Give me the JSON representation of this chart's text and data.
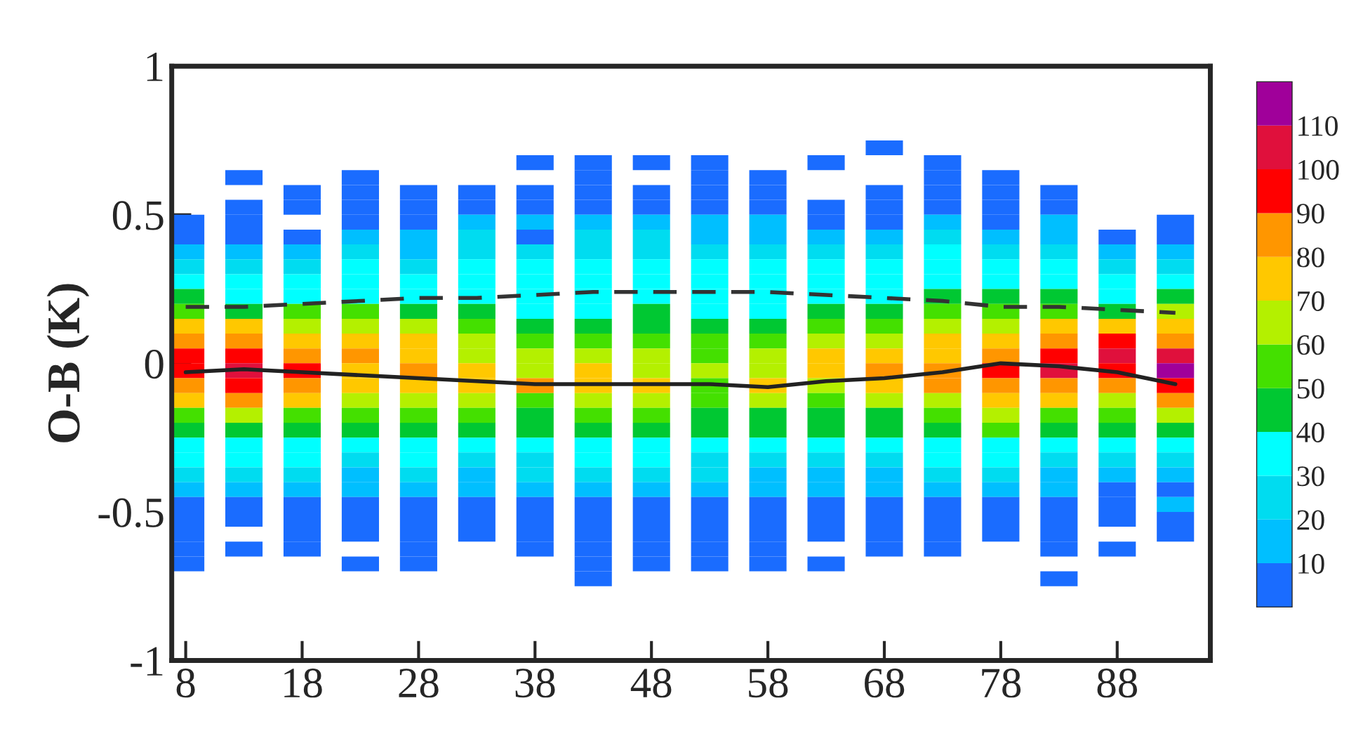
{
  "chart_data": {
    "type": "heatmap",
    "ylabel": "O-B (K)",
    "x": [
      8,
      13,
      18,
      23,
      28,
      33,
      38,
      43,
      48,
      53,
      58,
      63,
      68,
      73,
      78,
      83,
      88,
      93
    ],
    "y": [
      0.725,
      0.675,
      0.625,
      0.575,
      0.525,
      0.475,
      0.425,
      0.375,
      0.325,
      0.275,
      0.225,
      0.175,
      0.125,
      0.075,
      0.025,
      -0.025,
      -0.075,
      -0.125,
      -0.175,
      -0.225,
      -0.275,
      -0.325,
      -0.375,
      -0.425,
      -0.475,
      -0.525,
      -0.575,
      -0.625,
      -0.675,
      -0.725
    ],
    "xlim": [
      6.8,
      96
    ],
    "xticks": [
      8,
      18,
      28,
      38,
      48,
      58,
      68,
      78,
      88
    ],
    "ylim": [
      -1,
      1
    ],
    "yticks": [
      {
        "value": -1,
        "label": "-1"
      },
      {
        "value": -0.5,
        "label": "-0.5"
      },
      0,
      0.5,
      1
    ],
    "clim": [
      0,
      120
    ],
    "cticks": [
      10,
      20,
      30,
      40,
      50,
      60,
      70,
      80,
      90,
      100,
      110
    ],
    "colors": [
      "#1a6cff",
      "#00bfff",
      "#00dcf0",
      "#00ffff",
      "#00c832",
      "#44e000",
      "#b4f000",
      "#ffc800",
      "#ff9600",
      "#ff0000",
      "#e0103c",
      "#a0009a"
    ],
    "cells": [
      [
        null,
        null,
        null,
        null,
        null,
        null,
        null,
        null,
        null,
        null,
        null,
        null,
        5,
        null,
        null,
        null,
        null,
        null
      ],
      [
        null,
        null,
        null,
        null,
        null,
        null,
        5,
        5,
        5,
        5,
        null,
        5,
        null,
        5,
        null,
        null,
        null,
        null
      ],
      [
        null,
        5,
        null,
        5,
        null,
        null,
        null,
        5,
        null,
        5,
        5,
        null,
        null,
        5,
        5,
        null,
        null,
        null
      ],
      [
        null,
        null,
        5,
        5,
        5,
        5,
        5,
        5,
        5,
        5,
        5,
        null,
        5,
        5,
        5,
        5,
        null,
        null
      ],
      [
        null,
        5,
        5,
        5,
        5,
        5,
        5,
        5,
        5,
        5,
        5,
        5,
        5,
        5,
        5,
        5,
        null,
        null
      ],
      [
        5,
        5,
        null,
        5,
        5,
        15,
        15,
        15,
        15,
        15,
        15,
        5,
        5,
        15,
        5,
        15,
        null,
        5
      ],
      [
        5,
        5,
        5,
        15,
        15,
        25,
        5,
        25,
        25,
        15,
        15,
        15,
        15,
        25,
        15,
        15,
        5,
        5
      ],
      [
        15,
        15,
        15,
        25,
        15,
        25,
        25,
        25,
        25,
        25,
        25,
        25,
        25,
        35,
        25,
        25,
        15,
        15
      ],
      [
        25,
        25,
        25,
        35,
        25,
        35,
        35,
        35,
        35,
        35,
        35,
        35,
        35,
        35,
        35,
        35,
        25,
        25
      ],
      [
        35,
        35,
        35,
        35,
        35,
        35,
        35,
        35,
        35,
        35,
        35,
        35,
        35,
        35,
        35,
        35,
        35,
        35
      ],
      [
        45,
        35,
        35,
        35,
        35,
        35,
        35,
        35,
        35,
        35,
        35,
        35,
        35,
        45,
        45,
        45,
        35,
        45
      ],
      [
        55,
        45,
        55,
        55,
        45,
        45,
        35,
        35,
        45,
        35,
        35,
        45,
        45,
        55,
        55,
        55,
        45,
        65
      ],
      [
        75,
        75,
        65,
        65,
        65,
        55,
        45,
        45,
        45,
        45,
        45,
        55,
        55,
        65,
        65,
        75,
        75,
        75
      ],
      [
        85,
        85,
        75,
        75,
        75,
        65,
        55,
        55,
        55,
        55,
        55,
        65,
        65,
        75,
        75,
        85,
        95,
        85
      ],
      [
        95,
        95,
        85,
        85,
        75,
        65,
        65,
        65,
        65,
        55,
        65,
        75,
        75,
        75,
        85,
        95,
        105,
        105
      ],
      [
        95,
        105,
        95,
        75,
        85,
        75,
        65,
        75,
        65,
        65,
        65,
        75,
        85,
        85,
        95,
        105,
        95,
        115
      ],
      [
        85,
        95,
        85,
        75,
        75,
        75,
        85,
        75,
        75,
        55,
        75,
        65,
        75,
        85,
        85,
        85,
        85,
        95
      ],
      [
        75,
        85,
        75,
        65,
        65,
        65,
        55,
        65,
        65,
        55,
        65,
        55,
        65,
        65,
        75,
        75,
        65,
        85
      ],
      [
        55,
        65,
        55,
        55,
        55,
        55,
        45,
        55,
        55,
        45,
        45,
        45,
        45,
        55,
        65,
        55,
        55,
        65
      ],
      [
        45,
        45,
        45,
        45,
        45,
        45,
        45,
        45,
        45,
        45,
        45,
        45,
        45,
        45,
        55,
        45,
        45,
        45
      ],
      [
        35,
        35,
        35,
        35,
        35,
        35,
        35,
        35,
        35,
        35,
        35,
        35,
        35,
        35,
        35,
        35,
        35,
        35
      ],
      [
        35,
        35,
        35,
        25,
        35,
        25,
        25,
        35,
        35,
        25,
        25,
        25,
        25,
        35,
        35,
        25,
        25,
        25
      ],
      [
        25,
        25,
        25,
        15,
        25,
        15,
        25,
        25,
        25,
        25,
        15,
        15,
        15,
        25,
        25,
        15,
        15,
        15
      ],
      [
        15,
        15,
        15,
        15,
        15,
        15,
        15,
        15,
        15,
        15,
        15,
        15,
        15,
        15,
        15,
        15,
        5,
        5
      ],
      [
        5,
        5,
        5,
        5,
        5,
        5,
        5,
        5,
        5,
        5,
        5,
        5,
        5,
        5,
        5,
        5,
        5,
        15
      ],
      [
        5,
        5,
        5,
        5,
        5,
        5,
        5,
        5,
        5,
        5,
        5,
        5,
        5,
        5,
        5,
        5,
        5,
        5
      ],
      [
        5,
        null,
        5,
        5,
        5,
        5,
        5,
        5,
        5,
        5,
        5,
        5,
        5,
        5,
        5,
        5,
        null,
        5
      ],
      [
        5,
        5,
        5,
        null,
        5,
        null,
        5,
        5,
        5,
        5,
        5,
        null,
        5,
        5,
        null,
        5,
        5,
        null
      ],
      [
        5,
        null,
        null,
        5,
        5,
        null,
        null,
        5,
        5,
        5,
        5,
        5,
        null,
        null,
        null,
        null,
        null,
        null
      ],
      [
        null,
        null,
        null,
        null,
        null,
        null,
        null,
        5,
        null,
        null,
        null,
        null,
        null,
        null,
        null,
        5,
        null,
        null
      ]
    ],
    "series": [
      {
        "type": "line",
        "color": "#222222",
        "line_style": "solid",
        "x": [
          8,
          13,
          18,
          23,
          28,
          33,
          38,
          43,
          48,
          53,
          58,
          63,
          68,
          73,
          78,
          83,
          88,
          93
        ],
        "values": [
          -0.03,
          -0.02,
          -0.03,
          -0.04,
          -0.05,
          -0.06,
          -0.07,
          -0.07,
          -0.07,
          -0.07,
          -0.08,
          -0.06,
          -0.05,
          -0.03,
          0,
          -0.01,
          -0.03,
          -0.07
        ]
      },
      {
        "type": "line",
        "color": "#333333",
        "line_style": "dashed",
        "x": [
          8,
          13,
          18,
          23,
          28,
          33,
          38,
          43,
          48,
          53,
          58,
          63,
          68,
          73,
          78,
          83,
          88,
          93
        ],
        "values": [
          0.19,
          0.19,
          0.2,
          0.21,
          0.22,
          0.22,
          0.23,
          0.24,
          0.24,
          0.24,
          0.24,
          0.23,
          0.22,
          0.21,
          0.19,
          0.19,
          0.18,
          0.17
        ]
      }
    ],
    "grid": false,
    "legend": false
  }
}
